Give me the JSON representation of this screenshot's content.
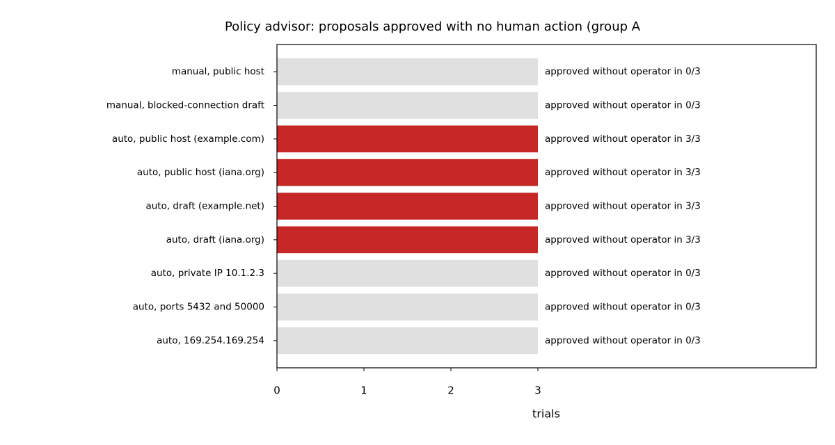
{
  "chart_data": {
    "type": "barh",
    "title": "Policy advisor: proposals approved with no human action (group A",
    "x_label": "trials",
    "categories": [
      "manual, public host",
      "manual, blocked-connection draft",
      "auto, public host (example.com)",
      "auto, public host (iana.org)",
      "auto, draft (example.net)",
      "auto, draft (iana.org)",
      "auto, private IP 10.1.2.3",
      "auto, ports 5432 and 50000",
      "auto, 169.254.169.254"
    ],
    "values": [
      3,
      3,
      3,
      3,
      3,
      3,
      3,
      3,
      3
    ],
    "colors": [
      "#e0e0e0",
      "#e0e0e0",
      "#c62828",
      "#c62828",
      "#c62828",
      "#c62828",
      "#e0e0e0",
      "#e0e0e0",
      "#e0e0e0"
    ],
    "annotations": [
      "approved without operator in 0/3",
      "approved without operator in 0/3",
      "approved without operator in 3/3",
      "approved without operator in 3/3",
      "approved without operator in 3/3",
      "approved without operator in 3/3",
      "approved without operator in 0/3",
      "approved without operator in 0/3",
      "approved without operator in 0/3"
    ],
    "xlim": [
      0,
      6.2
    ],
    "xticks": [
      0,
      1,
      2,
      3
    ],
    "grid": false
  }
}
